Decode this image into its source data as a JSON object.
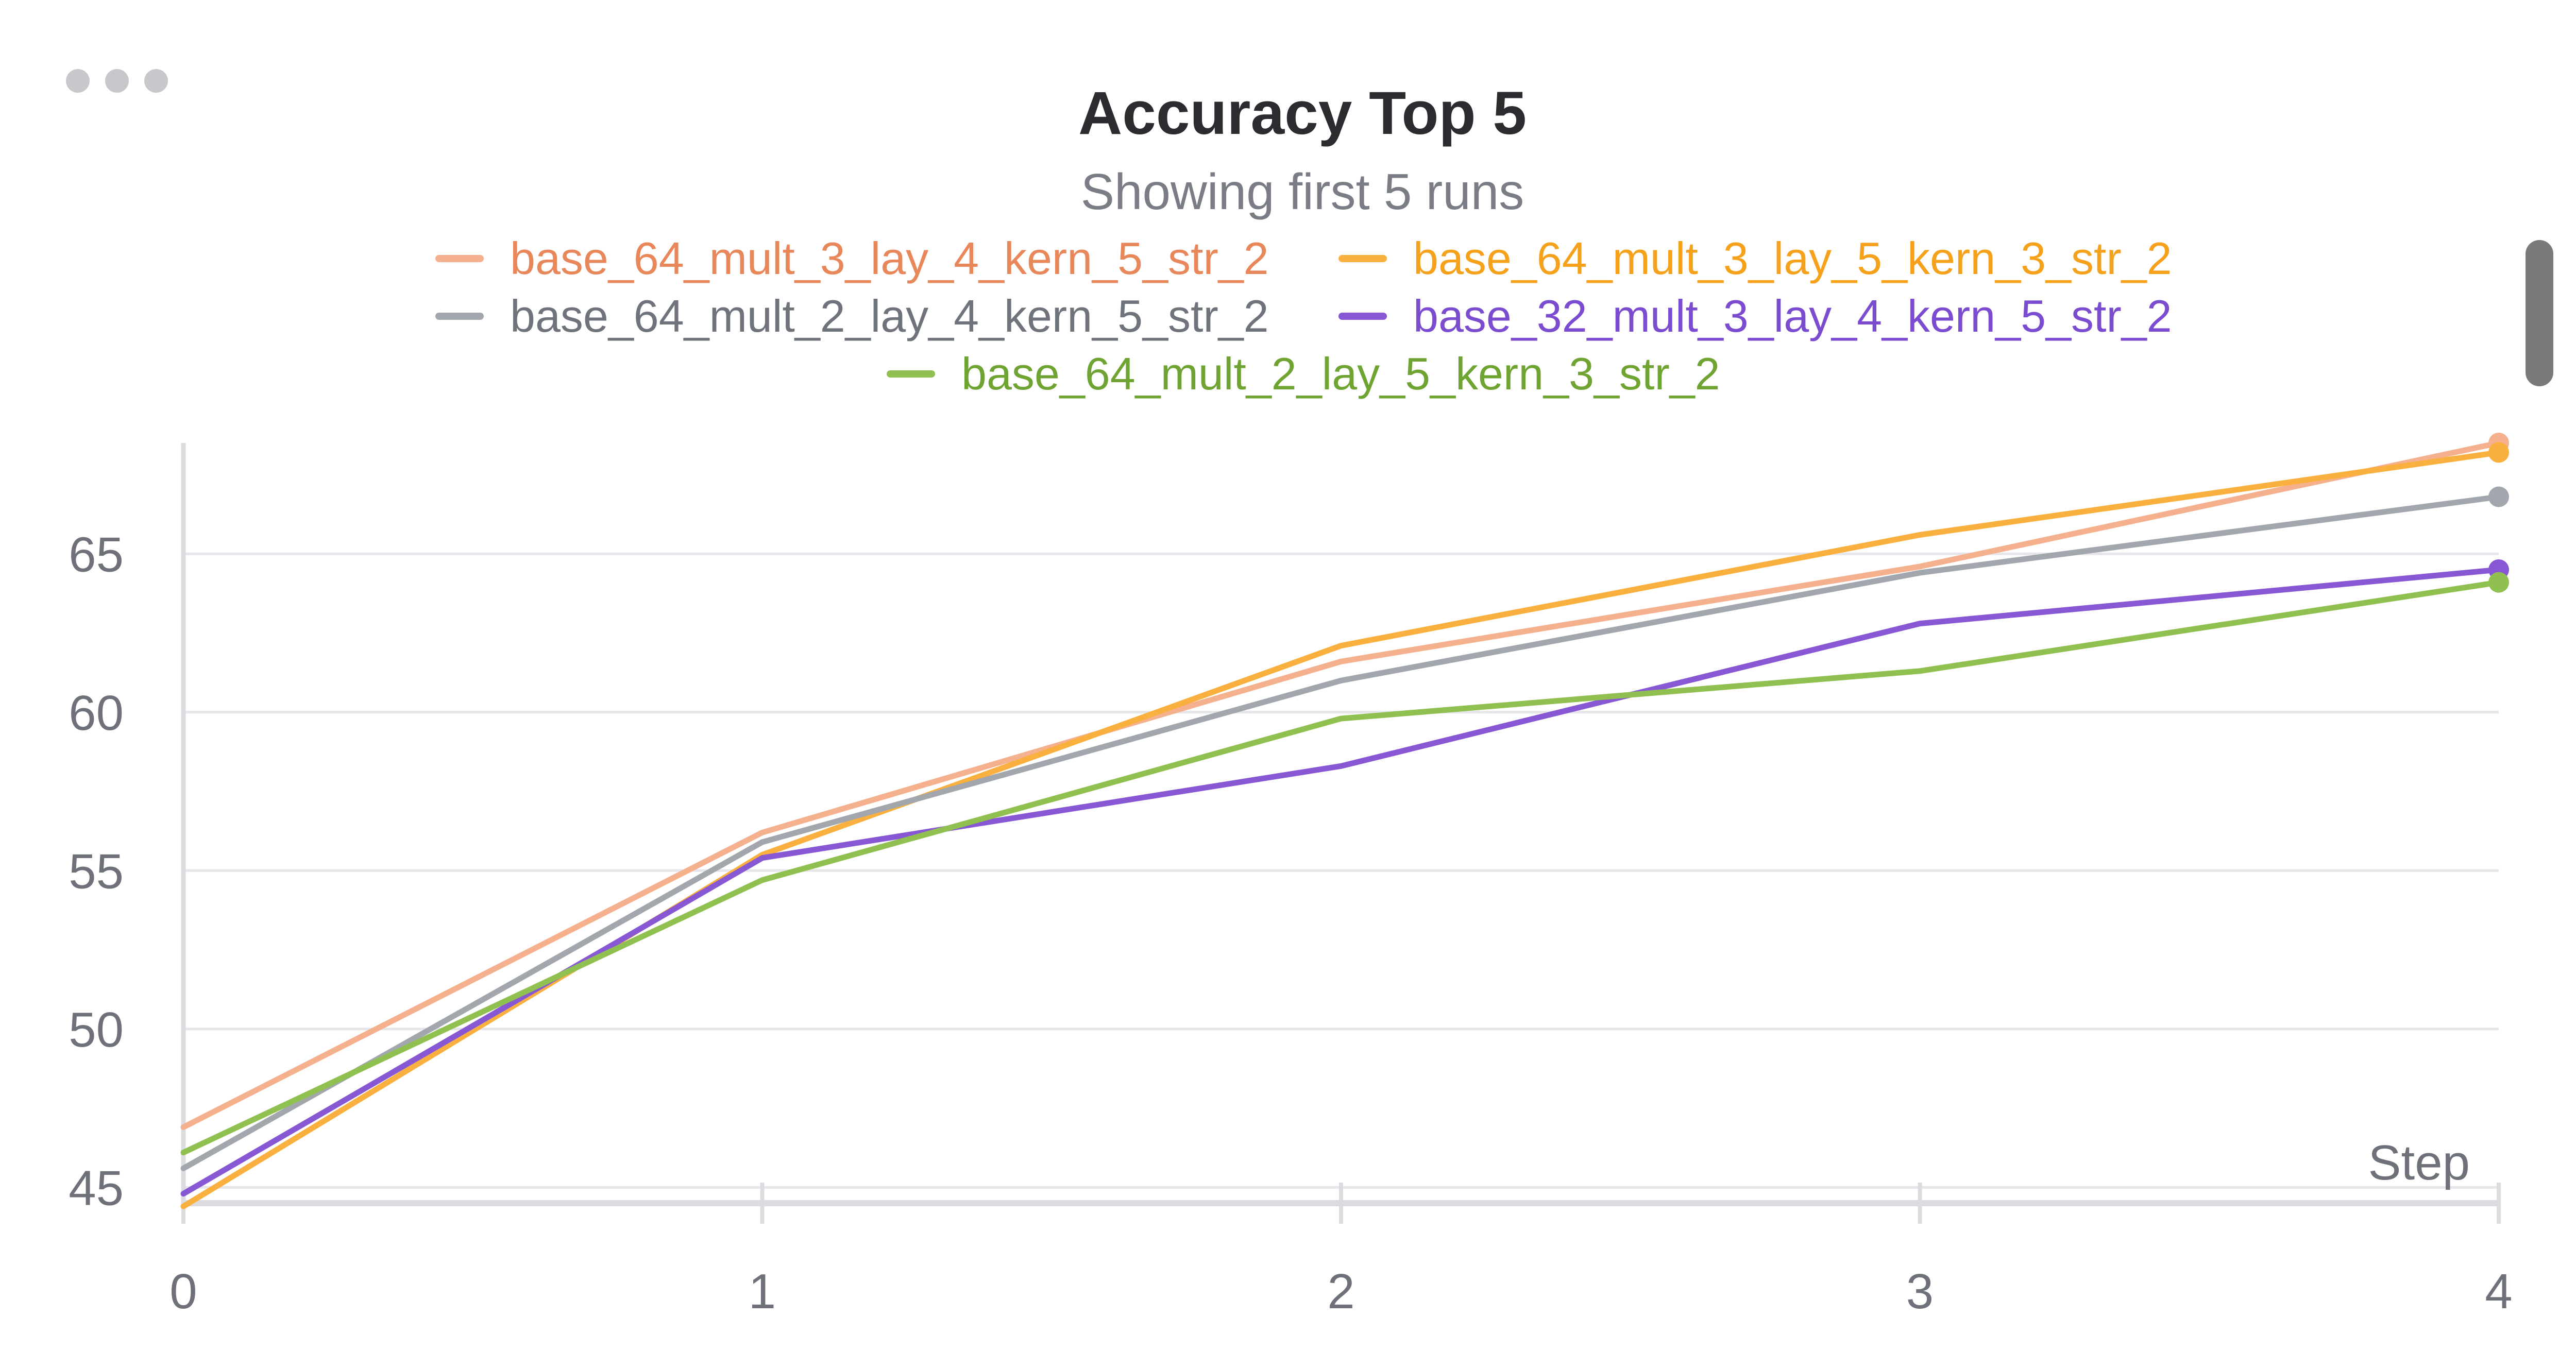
{
  "panel": {
    "menu_icon": "ellipsis-icon"
  },
  "chart_data": {
    "type": "line",
    "title": "Accuracy Top 5",
    "subtitle": "Showing first 5 runs",
    "xlabel": "Step",
    "ylabel": "",
    "x": [
      0,
      1,
      2,
      3,
      4
    ],
    "xticks": [
      0,
      1,
      2,
      3,
      4
    ],
    "yticks": [
      45,
      50,
      55,
      60,
      65
    ],
    "xlim": [
      0,
      4
    ],
    "ylim": [
      44.5,
      68.5
    ],
    "grid": true,
    "legend_position": "top",
    "series": [
      {
        "name": "base_64_mult_3_lay_4_kern_5_str_2",
        "color": "#f5b08e",
        "label_color": "#e8875a",
        "values": [
          46.9,
          56.2,
          61.6,
          64.6,
          68.5
        ]
      },
      {
        "name": "base_64_mult_3_lay_5_kern_3_str_2",
        "color": "#f9b03e",
        "label_color": "#f5a11c",
        "values": [
          44.4,
          55.5,
          62.1,
          65.6,
          68.2
        ]
      },
      {
        "name": "base_64_mult_2_lay_4_kern_5_str_2",
        "color": "#a2a6ad",
        "label_color": "#6f737b",
        "values": [
          45.6,
          55.9,
          61.0,
          64.4,
          66.8
        ]
      },
      {
        "name": "base_32_mult_3_lay_4_kern_5_str_2",
        "color": "#8757d4",
        "label_color": "#7b4bd0",
        "values": [
          44.8,
          55.4,
          58.3,
          62.8,
          64.5
        ]
      },
      {
        "name": "base_64_mult_2_lay_5_kern_3_str_2",
        "color": "#8fc050",
        "label_color": "#6fa433",
        "values": [
          46.1,
          54.7,
          59.8,
          61.3,
          64.1
        ]
      }
    ]
  }
}
